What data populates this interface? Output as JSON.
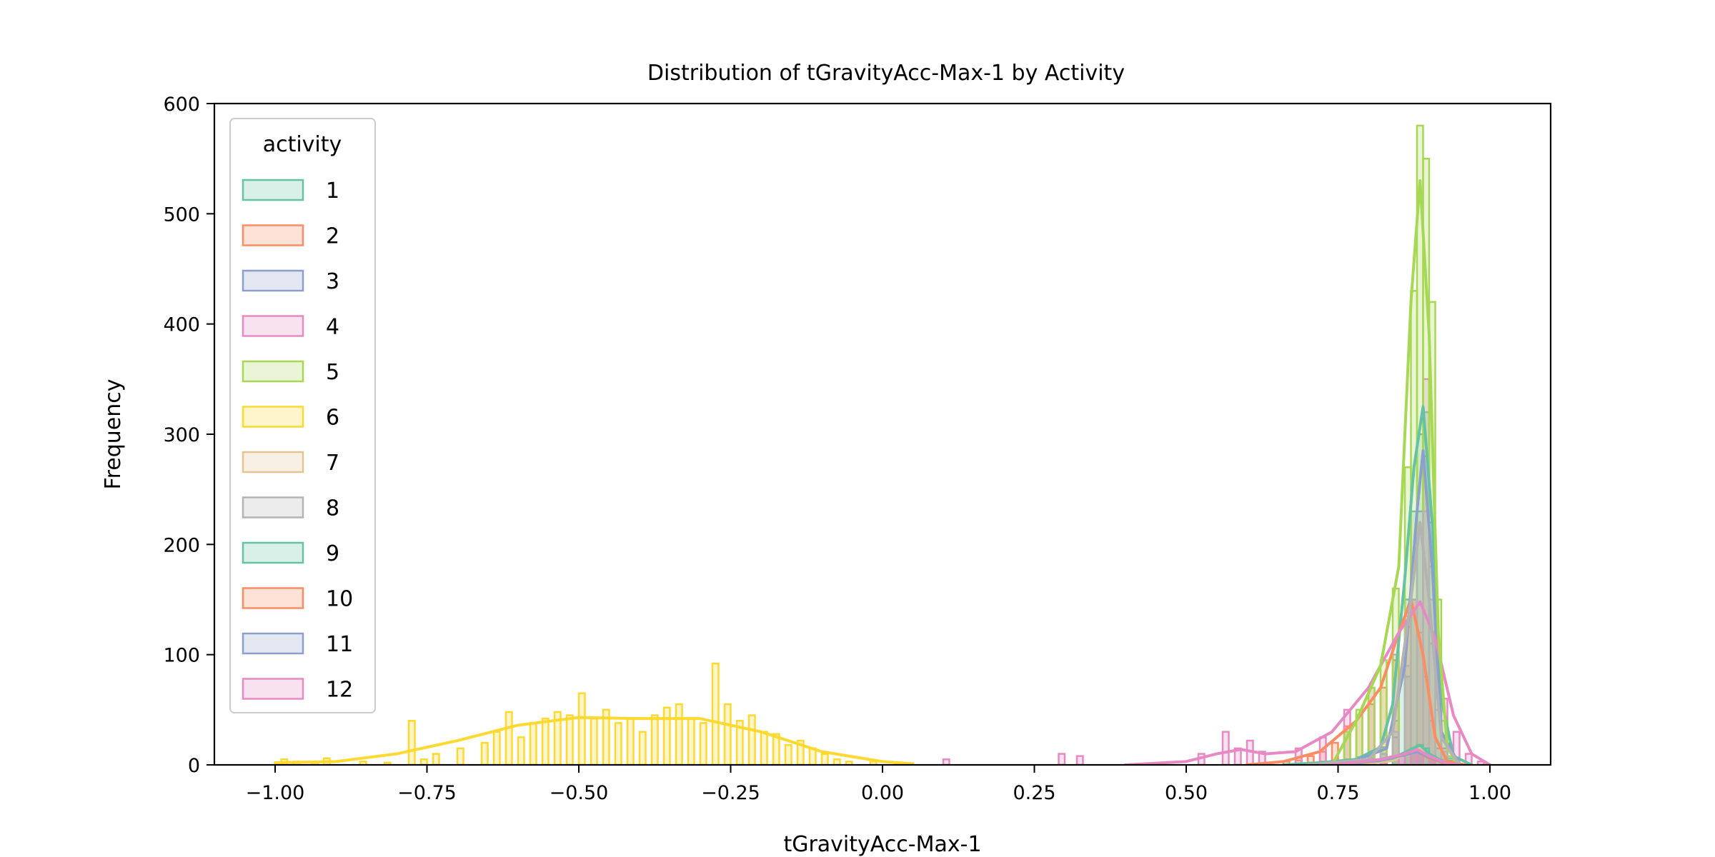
{
  "chart_data": {
    "type": "histogram",
    "title": "Distribution of tGravityAcc-Max-1 by Activity",
    "xlabel": "tGravityAcc-Max-1",
    "ylabel": "Frequency",
    "xlim": [
      -1.1,
      1.1
    ],
    "ylim": [
      0,
      600
    ],
    "x_ticks": [
      -1.0,
      -0.75,
      -0.5,
      -0.25,
      0.0,
      0.25,
      0.5,
      0.75,
      1.0
    ],
    "x_tick_labels": [
      "−1.00",
      "−0.75",
      "−0.50",
      "−0.25",
      "0.00",
      "0.25",
      "0.50",
      "0.75",
      "1.00"
    ],
    "y_ticks": [
      0,
      100,
      200,
      300,
      400,
      500,
      600
    ],
    "y_tick_labels": [
      "0",
      "100",
      "200",
      "300",
      "400",
      "500",
      "600"
    ],
    "grid": false,
    "legend": {
      "title": "activity",
      "placement": "upper-left",
      "entries": [
        "1",
        "2",
        "3",
        "4",
        "5",
        "6",
        "7",
        "8",
        "9",
        "10",
        "11",
        "12"
      ]
    },
    "bin_width": 0.01,
    "series": [
      {
        "name": "1",
        "color": "#66c2a5",
        "bins": [
          [
            0.7,
            2
          ],
          [
            0.72,
            3
          ],
          [
            0.74,
            4
          ],
          [
            0.76,
            5
          ],
          [
            0.78,
            7
          ],
          [
            0.8,
            10
          ],
          [
            0.82,
            16
          ],
          [
            0.84,
            40
          ],
          [
            0.85,
            80
          ],
          [
            0.86,
            150
          ],
          [
            0.87,
            230
          ],
          [
            0.88,
            300
          ],
          [
            0.89,
            320
          ],
          [
            0.9,
            220
          ],
          [
            0.91,
            90
          ],
          [
            0.92,
            25
          ],
          [
            0.93,
            6
          ],
          [
            0.94,
            2
          ]
        ],
        "kde": [
          [
            0.66,
            0
          ],
          [
            0.72,
            2
          ],
          [
            0.78,
            5
          ],
          [
            0.82,
            16
          ],
          [
            0.84,
            55
          ],
          [
            0.86,
            170
          ],
          [
            0.875,
            270
          ],
          [
            0.89,
            325
          ],
          [
            0.905,
            220
          ],
          [
            0.92,
            60
          ],
          [
            0.94,
            8
          ],
          [
            0.97,
            0
          ]
        ]
      },
      {
        "name": "2",
        "color": "#fc8d62",
        "bins": [
          [
            0.66,
            3
          ],
          [
            0.68,
            4
          ],
          [
            0.7,
            8
          ],
          [
            0.72,
            12
          ],
          [
            0.74,
            20
          ],
          [
            0.76,
            35
          ],
          [
            0.78,
            45
          ],
          [
            0.8,
            55
          ],
          [
            0.82,
            70
          ],
          [
            0.84,
            95
          ],
          [
            0.86,
            135
          ],
          [
            0.87,
            150
          ],
          [
            0.88,
            120
          ],
          [
            0.89,
            80
          ],
          [
            0.9,
            40
          ],
          [
            0.91,
            15
          ],
          [
            0.92,
            5
          ]
        ],
        "kde": [
          [
            0.6,
            0
          ],
          [
            0.66,
            3
          ],
          [
            0.72,
            12
          ],
          [
            0.78,
            40
          ],
          [
            0.82,
            70
          ],
          [
            0.85,
            120
          ],
          [
            0.87,
            150
          ],
          [
            0.89,
            100
          ],
          [
            0.91,
            25
          ],
          [
            0.93,
            3
          ],
          [
            0.96,
            0
          ]
        ]
      },
      {
        "name": "3",
        "color": "#8da0cb",
        "bins": [
          [
            0.74,
            2
          ],
          [
            0.78,
            4
          ],
          [
            0.8,
            6
          ],
          [
            0.82,
            10
          ],
          [
            0.84,
            25
          ],
          [
            0.86,
            80
          ],
          [
            0.87,
            150
          ],
          [
            0.88,
            230
          ],
          [
            0.89,
            280
          ],
          [
            0.9,
            180
          ],
          [
            0.91,
            60
          ],
          [
            0.92,
            15
          ],
          [
            0.93,
            4
          ]
        ],
        "kde": [
          [
            0.7,
            0
          ],
          [
            0.78,
            4
          ],
          [
            0.83,
            15
          ],
          [
            0.86,
            90
          ],
          [
            0.88,
            230
          ],
          [
            0.89,
            285
          ],
          [
            0.905,
            180
          ],
          [
            0.92,
            30
          ],
          [
            0.95,
            0
          ]
        ]
      },
      {
        "name": "4",
        "color": "#e78ac3",
        "bins": [
          [
            0.1,
            5
          ],
          [
            0.29,
            10
          ],
          [
            0.32,
            8
          ],
          [
            0.52,
            10
          ],
          [
            0.56,
            30
          ],
          [
            0.58,
            15
          ],
          [
            0.6,
            22
          ],
          [
            0.62,
            12
          ],
          [
            0.68,
            15
          ],
          [
            0.72,
            25
          ],
          [
            0.76,
            50
          ],
          [
            0.8,
            70
          ],
          [
            0.84,
            100
          ],
          [
            0.86,
            125
          ],
          [
            0.88,
            145
          ],
          [
            0.89,
            350
          ],
          [
            0.9,
            110
          ],
          [
            0.92,
            60
          ],
          [
            0.94,
            30
          ],
          [
            0.96,
            10
          ],
          [
            0.98,
            3
          ]
        ],
        "kde": [
          [
            0.4,
            0
          ],
          [
            0.5,
            3
          ],
          [
            0.55,
            10
          ],
          [
            0.59,
            14
          ],
          [
            0.63,
            10
          ],
          [
            0.68,
            12
          ],
          [
            0.74,
            30
          ],
          [
            0.8,
            70
          ],
          [
            0.85,
            120
          ],
          [
            0.885,
            148
          ],
          [
            0.91,
            115
          ],
          [
            0.94,
            45
          ],
          [
            0.97,
            10
          ],
          [
            1.0,
            0
          ]
        ]
      },
      {
        "name": "5",
        "color": "#a6d854",
        "bins": [
          [
            0.76,
            30
          ],
          [
            0.78,
            50
          ],
          [
            0.8,
            70
          ],
          [
            0.82,
            95
          ],
          [
            0.84,
            160
          ],
          [
            0.86,
            270
          ],
          [
            0.87,
            430
          ],
          [
            0.88,
            580
          ],
          [
            0.89,
            550
          ],
          [
            0.9,
            420
          ],
          [
            0.91,
            150
          ],
          [
            0.92,
            40
          ],
          [
            0.93,
            8
          ]
        ],
        "kde": [
          [
            0.74,
            0
          ],
          [
            0.78,
            40
          ],
          [
            0.82,
            90
          ],
          [
            0.85,
            180
          ],
          [
            0.87,
            420
          ],
          [
            0.885,
            530
          ],
          [
            0.9,
            390
          ],
          [
            0.915,
            120
          ],
          [
            0.93,
            15
          ],
          [
            0.95,
            0
          ]
        ]
      },
      {
        "name": "6",
        "color": "#ffd92f",
        "bins": [
          [
            -0.99,
            5
          ],
          [
            -0.97,
            3
          ],
          [
            -0.94,
            2
          ],
          [
            -0.92,
            6
          ],
          [
            -0.86,
            3
          ],
          [
            -0.82,
            2
          ],
          [
            -0.78,
            40
          ],
          [
            -0.76,
            5
          ],
          [
            -0.74,
            10
          ],
          [
            -0.7,
            15
          ],
          [
            -0.66,
            20
          ],
          [
            -0.64,
            30
          ],
          [
            -0.62,
            48
          ],
          [
            -0.6,
            25
          ],
          [
            -0.58,
            38
          ],
          [
            -0.56,
            42
          ],
          [
            -0.54,
            48
          ],
          [
            -0.52,
            45
          ],
          [
            -0.5,
            65
          ],
          [
            -0.48,
            42
          ],
          [
            -0.46,
            50
          ],
          [
            -0.44,
            38
          ],
          [
            -0.42,
            42
          ],
          [
            -0.4,
            30
          ],
          [
            -0.38,
            45
          ],
          [
            -0.36,
            52
          ],
          [
            -0.34,
            55
          ],
          [
            -0.32,
            42
          ],
          [
            -0.3,
            38
          ],
          [
            -0.28,
            92
          ],
          [
            -0.26,
            55
          ],
          [
            -0.24,
            40
          ],
          [
            -0.22,
            45
          ],
          [
            -0.2,
            30
          ],
          [
            -0.18,
            28
          ],
          [
            -0.16,
            18
          ],
          [
            -0.14,
            22
          ],
          [
            -0.12,
            15
          ],
          [
            -0.1,
            10
          ],
          [
            -0.08,
            5
          ],
          [
            -0.06,
            3
          ],
          [
            -0.02,
            3
          ],
          [
            0.02,
            2
          ]
        ],
        "kde": [
          [
            -1.0,
            2
          ],
          [
            -0.9,
            3
          ],
          [
            -0.8,
            10
          ],
          [
            -0.7,
            22
          ],
          [
            -0.6,
            36
          ],
          [
            -0.5,
            43
          ],
          [
            -0.4,
            42
          ],
          [
            -0.3,
            42
          ],
          [
            -0.2,
            30
          ],
          [
            -0.1,
            12
          ],
          [
            0.0,
            3
          ],
          [
            0.05,
            1
          ]
        ]
      },
      {
        "name": "7",
        "color": "#e5c494",
        "bins": [
          [
            0.82,
            2
          ],
          [
            0.84,
            4
          ],
          [
            0.86,
            8
          ],
          [
            0.87,
            12
          ],
          [
            0.88,
            15
          ],
          [
            0.89,
            12
          ],
          [
            0.9,
            6
          ],
          [
            0.92,
            2
          ]
        ],
        "kde": [
          [
            0.78,
            0
          ],
          [
            0.84,
            4
          ],
          [
            0.87,
            12
          ],
          [
            0.885,
            15
          ],
          [
            0.9,
            8
          ],
          [
            0.93,
            1
          ],
          [
            0.95,
            0
          ]
        ]
      },
      {
        "name": "8",
        "color": "#b3b3b3",
        "bins": [
          [
            0.72,
            2
          ],
          [
            0.76,
            3
          ],
          [
            0.8,
            5
          ],
          [
            0.82,
            10
          ],
          [
            0.84,
            30
          ],
          [
            0.86,
            90
          ],
          [
            0.87,
            150
          ],
          [
            0.88,
            210
          ],
          [
            0.89,
            230
          ],
          [
            0.9,
            150
          ],
          [
            0.91,
            50
          ],
          [
            0.92,
            12
          ]
        ],
        "kde": [
          [
            0.7,
            0
          ],
          [
            0.8,
            5
          ],
          [
            0.84,
            30
          ],
          [
            0.87,
            150
          ],
          [
            0.885,
            220
          ],
          [
            0.9,
            150
          ],
          [
            0.92,
            25
          ],
          [
            0.95,
            0
          ]
        ]
      },
      {
        "name": "9",
        "color": "#66c2a5",
        "bins": [
          [
            0.8,
            3
          ],
          [
            0.84,
            6
          ],
          [
            0.86,
            10
          ],
          [
            0.87,
            15
          ],
          [
            0.88,
            18
          ],
          [
            0.89,
            15
          ],
          [
            0.9,
            8
          ],
          [
            0.92,
            2
          ]
        ],
        "kde": [
          [
            0.76,
            0
          ],
          [
            0.84,
            6
          ],
          [
            0.87,
            14
          ],
          [
            0.885,
            18
          ],
          [
            0.9,
            10
          ],
          [
            0.93,
            1
          ],
          [
            0.95,
            0
          ]
        ]
      },
      {
        "name": "10",
        "color": "#fc8d62",
        "bins": [
          [
            0.78,
            2
          ],
          [
            0.82,
            4
          ],
          [
            0.85,
            8
          ],
          [
            0.87,
            12
          ],
          [
            0.88,
            10
          ],
          [
            0.9,
            5
          ],
          [
            0.92,
            2
          ]
        ],
        "kde": [
          [
            0.74,
            0
          ],
          [
            0.82,
            4
          ],
          [
            0.86,
            10
          ],
          [
            0.88,
            12
          ],
          [
            0.9,
            6
          ],
          [
            0.93,
            1
          ],
          [
            0.95,
            0
          ]
        ]
      },
      {
        "name": "11",
        "color": "#8da0cb",
        "bins": [
          [
            0.78,
            2
          ],
          [
            0.82,
            4
          ],
          [
            0.85,
            8
          ],
          [
            0.87,
            11
          ],
          [
            0.88,
            12
          ],
          [
            0.9,
            6
          ],
          [
            0.92,
            2
          ]
        ],
        "kde": [
          [
            0.74,
            0
          ],
          [
            0.82,
            4
          ],
          [
            0.86,
            9
          ],
          [
            0.88,
            12
          ],
          [
            0.9,
            7
          ],
          [
            0.93,
            1
          ],
          [
            0.95,
            0
          ]
        ]
      },
      {
        "name": "12",
        "color": "#e78ac3",
        "bins": [
          [
            0.78,
            2
          ],
          [
            0.82,
            5
          ],
          [
            0.85,
            9
          ],
          [
            0.87,
            12
          ],
          [
            0.88,
            14
          ],
          [
            0.9,
            7
          ],
          [
            0.92,
            2
          ]
        ],
        "kde": [
          [
            0.74,
            0
          ],
          [
            0.82,
            5
          ],
          [
            0.86,
            10
          ],
          [
            0.88,
            14
          ],
          [
            0.9,
            8
          ],
          [
            0.93,
            1
          ],
          [
            0.95,
            0
          ]
        ]
      }
    ]
  }
}
